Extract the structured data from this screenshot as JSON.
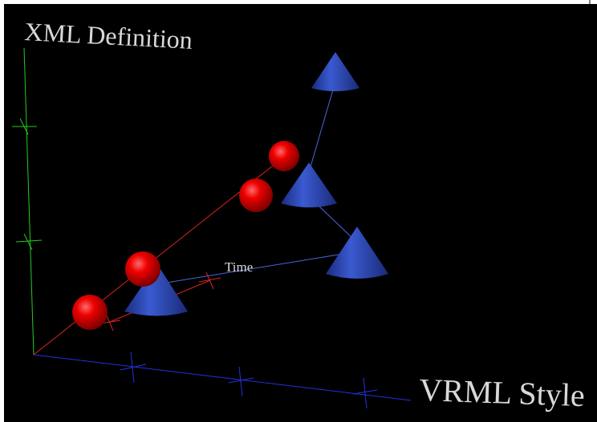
{
  "labels": {
    "y_axis": "XML Definition",
    "x_axis": "VRML Style",
    "z_axis": "Time"
  }
}
